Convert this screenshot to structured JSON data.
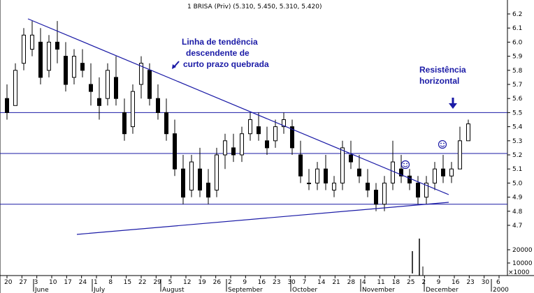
{
  "chart_data": {
    "type": "candlestick",
    "title": "1 BRISA (Priv) (5.310, 5.450, 5.310, 5.420)",
    "y_range": [
      4.6,
      6.25
    ],
    "y_ticks": [
      "6.2",
      "6.1",
      "6.0",
      "5.9",
      "5.8",
      "5.7",
      "5.6",
      "5.5",
      "5.4",
      "5.3",
      "5.2",
      "5.1",
      "5.0",
      "4.9",
      "4.8",
      "4.7"
    ],
    "volume_ticks": [
      "20000",
      "10000"
    ],
    "volume_unit": "x1000",
    "x_day_ticks": [
      "20",
      "27",
      "3",
      "10",
      "17",
      "24",
      "1",
      "8",
      "15",
      "22",
      "29",
      "5",
      "12",
      "19",
      "26",
      "2",
      "9",
      "16",
      "23",
      "30",
      "7",
      "14",
      "21",
      "28",
      "4",
      "11",
      "18",
      "25",
      "2",
      "9",
      "16",
      "23",
      "30",
      "6"
    ],
    "x_month_labels": [
      "June",
      "July",
      "August",
      "September",
      "October",
      "November",
      "December",
      "2000"
    ],
    "horizontal_lines": [
      5.5,
      5.21,
      4.85
    ],
    "trend_lines": [
      {
        "name": "downtrend",
        "start": [
          "May 24",
          6.17
        ],
        "end": [
          "Dec 14",
          4.92
        ]
      },
      {
        "name": "lower",
        "start": [
          "Jun 10",
          4.65
        ],
        "end": [
          "Dec 14",
          4.86
        ]
      }
    ],
    "annotations": [
      {
        "text": "Linha de tendência descendente de curto prazo quebrada",
        "lines": [
          "Linha de tendência",
          "descendente de",
          "curto prazo quebrada"
        ]
      },
      {
        "text": "Resistência horizontal",
        "lines": [
          "Resistência",
          "horizontal"
        ]
      }
    ],
    "series": [
      {
        "values": [
          [
            5.6,
            5.7,
            5.45,
            5.5
          ],
          [
            5.55,
            5.85,
            5.55,
            5.8
          ],
          [
            5.85,
            6.1,
            5.8,
            6.05
          ],
          [
            5.95,
            6.15,
            5.9,
            6.05
          ],
          [
            6.0,
            6.1,
            5.7,
            5.75
          ],
          [
            5.8,
            6.05,
            5.75,
            6.0
          ],
          [
            6.0,
            6.15,
            5.85,
            5.95
          ],
          [
            5.9,
            6.0,
            5.65,
            5.7
          ],
          [
            5.75,
            5.95,
            5.7,
            5.9
          ],
          [
            5.85,
            5.95,
            5.75,
            5.8
          ],
          [
            5.7,
            5.85,
            5.55,
            5.65
          ],
          [
            5.6,
            5.75,
            5.45,
            5.55
          ],
          [
            5.6,
            5.85,
            5.55,
            5.8
          ],
          [
            5.75,
            5.9,
            5.55,
            5.6
          ],
          [
            5.5,
            5.6,
            5.3,
            5.35
          ],
          [
            5.4,
            5.7,
            5.35,
            5.65
          ],
          [
            5.7,
            5.9,
            5.6,
            5.85
          ],
          [
            5.8,
            5.85,
            5.55,
            5.6
          ],
          [
            5.6,
            5.7,
            5.45,
            5.5
          ],
          [
            5.5,
            5.6,
            5.3,
            5.35
          ],
          [
            5.35,
            5.45,
            5.05,
            5.1
          ],
          [
            5.1,
            5.2,
            4.85,
            4.9
          ],
          [
            4.95,
            5.2,
            4.9,
            5.15
          ],
          [
            5.1,
            5.25,
            4.9,
            4.95
          ],
          [
            5.0,
            5.1,
            4.85,
            4.9
          ],
          [
            4.95,
            5.25,
            4.9,
            5.2
          ],
          [
            5.2,
            5.35,
            5.1,
            5.3
          ],
          [
            5.25,
            5.35,
            5.15,
            5.2
          ],
          [
            5.2,
            5.4,
            5.15,
            5.35
          ],
          [
            5.35,
            5.5,
            5.3,
            5.45
          ],
          [
            5.4,
            5.5,
            5.3,
            5.35
          ],
          [
            5.3,
            5.4,
            5.2,
            5.25
          ],
          [
            5.3,
            5.45,
            5.25,
            5.4
          ],
          [
            5.4,
            5.5,
            5.35,
            5.45
          ],
          [
            5.4,
            5.45,
            5.2,
            5.25
          ],
          [
            5.2,
            5.3,
            5.0,
            5.05
          ],
          [
            5.0,
            5.1,
            4.95,
            5.0
          ],
          [
            5.0,
            5.15,
            4.95,
            5.1
          ],
          [
            5.1,
            5.2,
            4.95,
            5.0
          ],
          [
            4.95,
            5.05,
            4.9,
            5.0
          ],
          [
            5.0,
            5.3,
            4.95,
            5.25
          ],
          [
            5.2,
            5.3,
            5.1,
            5.15
          ],
          [
            5.1,
            5.2,
            5.0,
            5.05
          ],
          [
            5.0,
            5.1,
            4.9,
            4.95
          ],
          [
            4.95,
            5.0,
            4.8,
            4.85
          ],
          [
            4.85,
            5.05,
            4.8,
            5.0
          ],
          [
            5.0,
            5.3,
            4.95,
            5.15
          ],
          [
            5.1,
            5.2,
            5.0,
            5.05
          ],
          [
            5.05,
            5.1,
            4.95,
            5.0
          ],
          [
            5.0,
            5.05,
            4.85,
            4.9
          ],
          [
            4.9,
            5.05,
            4.85,
            5.0
          ],
          [
            5.0,
            5.15,
            4.95,
            5.1
          ],
          [
            5.1,
            5.2,
            5.0,
            5.05
          ],
          [
            5.05,
            5.15,
            5.0,
            5.1
          ],
          [
            5.1,
            5.4,
            5.1,
            5.3
          ],
          [
            5.3,
            5.45,
            5.3,
            5.42
          ]
        ]
      }
    ]
  },
  "footer_indicator": "×1000"
}
